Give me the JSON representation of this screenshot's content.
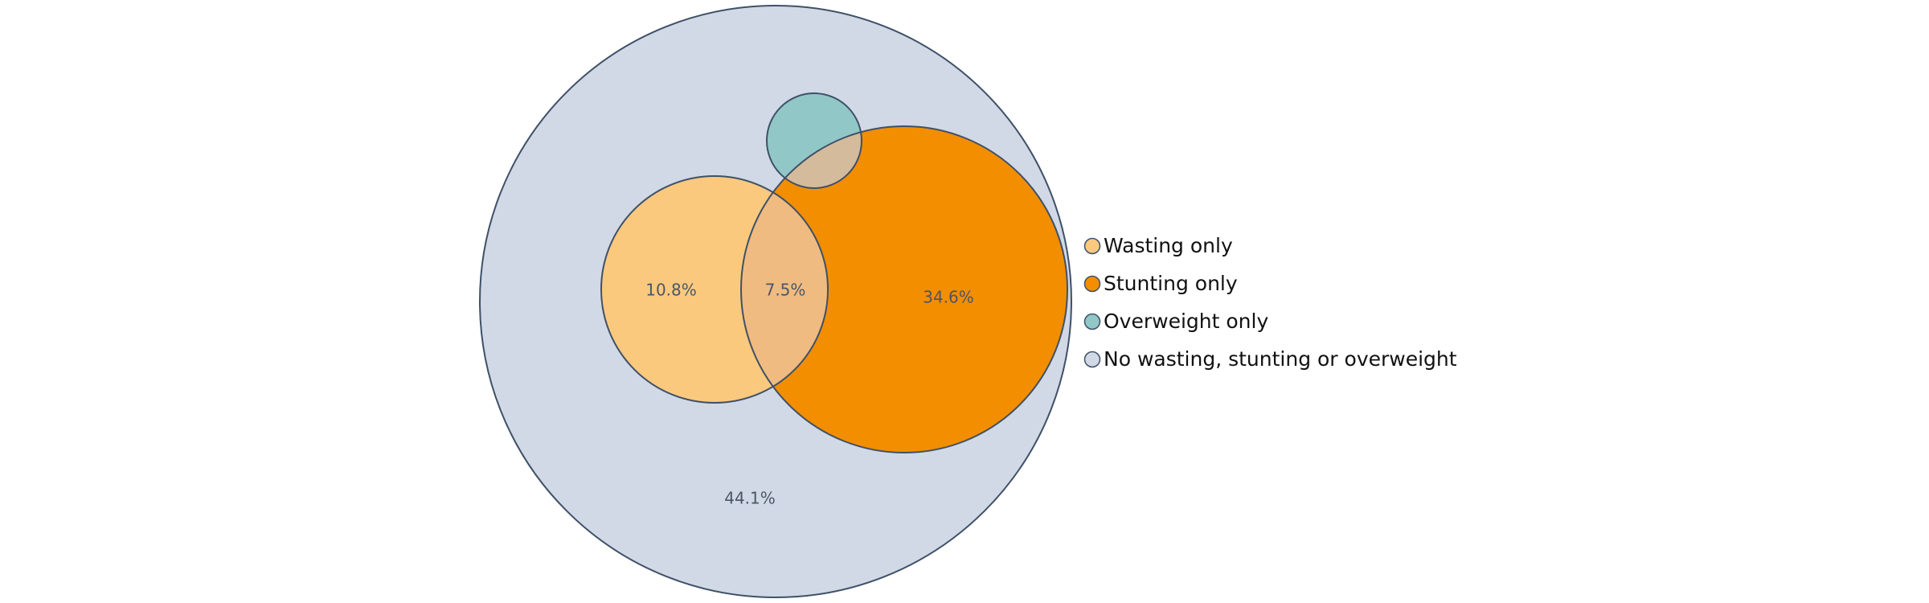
{
  "chart_data": {
    "type": "venn",
    "title": "",
    "sets": [
      {
        "key": "none",
        "name": "No wasting, stunting or overweight",
        "color": "#d0d9e5"
      },
      {
        "key": "stunting",
        "name": "Stunting only",
        "color": "#f28e00"
      },
      {
        "key": "wasting",
        "name": "Wasting only",
        "color": "#fac97e"
      },
      {
        "key": "overweight",
        "name": "Overweight only",
        "color": "#91c8c7"
      }
    ],
    "regions": [
      {
        "key": "wasting_only",
        "label": "10.8%",
        "value": 10.8
      },
      {
        "key": "wasting_and_stunting",
        "label": "7.5%",
        "value": 7.5
      },
      {
        "key": "stunting_only",
        "label": "34.6%",
        "value": 34.6
      },
      {
        "key": "none",
        "label": "44.1%",
        "value": 44.1
      }
    ],
    "legend_placement": "right",
    "outline_color": "#3f5068",
    "overlap_colors": {
      "wasting_and_stunting": "#f0bb80",
      "overweight_and_stunting": "#d4bb9c"
    }
  }
}
